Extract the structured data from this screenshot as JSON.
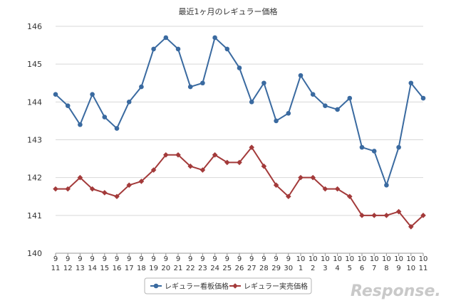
{
  "chart_data": {
    "type": "line",
    "title": "最近1ヶ月のレギュラー価格",
    "ylim": [
      140,
      146
    ],
    "yticks": [
      140,
      141,
      142,
      143,
      144,
      145,
      146
    ],
    "grid": true,
    "legend_position": "bottom",
    "categories": [
      [
        "9",
        "11"
      ],
      [
        "9",
        "12"
      ],
      [
        "9",
        "13"
      ],
      [
        "9",
        "14"
      ],
      [
        "9",
        "15"
      ],
      [
        "9",
        "16"
      ],
      [
        "9",
        "17"
      ],
      [
        "9",
        "18"
      ],
      [
        "9",
        "19"
      ],
      [
        "9",
        "20"
      ],
      [
        "9",
        "21"
      ],
      [
        "9",
        "22"
      ],
      [
        "9",
        "23"
      ],
      [
        "9",
        "24"
      ],
      [
        "9",
        "25"
      ],
      [
        "9",
        "26"
      ],
      [
        "9",
        "27"
      ],
      [
        "9",
        "28"
      ],
      [
        "9",
        "29"
      ],
      [
        "9",
        "30"
      ],
      [
        "10",
        "1"
      ],
      [
        "10",
        "2"
      ],
      [
        "10",
        "3"
      ],
      [
        "10",
        "4"
      ],
      [
        "10",
        "5"
      ],
      [
        "10",
        "6"
      ],
      [
        "10",
        "7"
      ],
      [
        "10",
        "8"
      ],
      [
        "10",
        "9"
      ],
      [
        "10",
        "10"
      ],
      [
        "10",
        "11"
      ]
    ],
    "series": [
      {
        "name": "レギュラー看板価格",
        "color": "#3a6aa0",
        "marker": "circle",
        "values": [
          144.2,
          143.9,
          143.4,
          144.2,
          143.6,
          143.3,
          144.0,
          144.4,
          145.4,
          145.7,
          145.4,
          144.4,
          144.5,
          145.7,
          145.4,
          144.9,
          144.0,
          144.5,
          143.5,
          143.7,
          144.7,
          144.2,
          143.9,
          143.8,
          144.1,
          142.8,
          142.7,
          141.8,
          142.8,
          144.5,
          144.1
        ]
      },
      {
        "name": "レギュラー実売価格",
        "color": "#a33a3a",
        "marker": "diamond",
        "values": [
          141.7,
          141.7,
          142.0,
          141.7,
          141.6,
          141.5,
          141.8,
          141.9,
          142.2,
          142.6,
          142.6,
          142.3,
          142.2,
          142.6,
          142.4,
          142.4,
          142.8,
          142.3,
          141.8,
          141.5,
          142.0,
          142.0,
          141.7,
          141.7,
          141.5,
          141.0,
          141.0,
          141.0,
          141.1,
          140.7,
          141.0
        ]
      }
    ]
  },
  "watermark": "Response."
}
